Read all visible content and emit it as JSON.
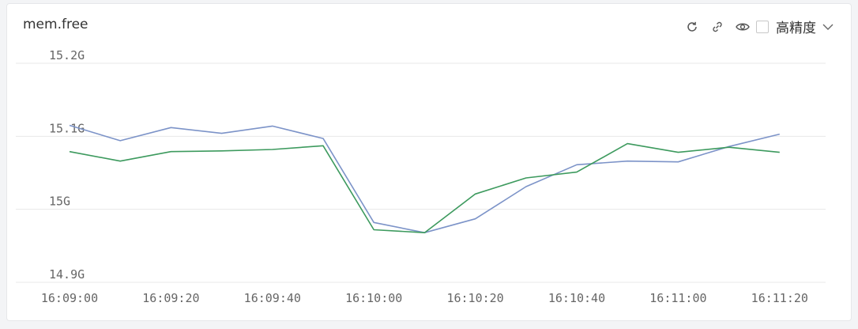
{
  "panel": {
    "title": "mem.free",
    "high_precision_label": "高精度",
    "icons": [
      "refresh-icon",
      "link-icon",
      "eye-icon",
      "chevron-down-icon"
    ]
  },
  "colors": {
    "series_blue": "#7c93c8",
    "series_green": "#3d9a5e",
    "grid": "#e8e8e8"
  },
  "chart_data": {
    "type": "line",
    "title": "mem.free",
    "xlabel": "",
    "ylabel": "",
    "x": [
      "16:09:00",
      "16:09:10",
      "16:09:20",
      "16:09:30",
      "16:09:40",
      "16:09:50",
      "16:10:00",
      "16:10:10",
      "16:10:20",
      "16:10:30",
      "16:10:40",
      "16:10:50",
      "16:11:00",
      "16:11:10",
      "16:11:20"
    ],
    "x_tick_labels": [
      "16:09:00",
      "16:09:20",
      "16:09:40",
      "16:10:00",
      "16:10:20",
      "16:10:40",
      "16:11:00",
      "16:11:20"
    ],
    "y_tick_labels": [
      "15.2G",
      "15.1G",
      "15G",
      "14.9G"
    ],
    "y_ticks": [
      15.2,
      15.1,
      15.0,
      14.9
    ],
    "ylim": [
      14.9,
      15.2
    ],
    "grid": true,
    "legend": "none",
    "series": [
      {
        "color": "#7c93c8",
        "values": [
          15.115,
          15.094,
          15.112,
          15.104,
          15.114,
          15.097,
          14.982,
          14.968,
          14.987,
          15.031,
          15.061,
          15.066,
          15.065,
          15.086,
          15.103
        ]
      },
      {
        "color": "#3d9a5e",
        "values": [
          15.079,
          15.066,
          15.079,
          15.08,
          15.082,
          15.087,
          14.972,
          14.968,
          15.021,
          15.043,
          15.051,
          15.09,
          15.078,
          15.085,
          15.078
        ]
      }
    ]
  }
}
